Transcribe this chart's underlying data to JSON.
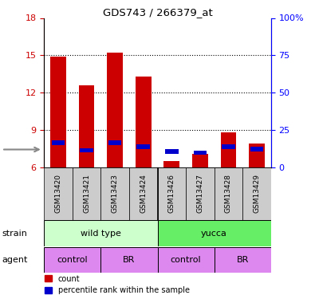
{
  "title": "GDS743 / 266379_at",
  "samples": [
    "GSM13420",
    "GSM13421",
    "GSM13423",
    "GSM13424",
    "GSM13426",
    "GSM13427",
    "GSM13428",
    "GSM13429"
  ],
  "red_values": [
    14.9,
    12.6,
    15.2,
    13.3,
    6.5,
    7.1,
    8.8,
    7.9
  ],
  "blue_values": [
    7.8,
    7.2,
    7.8,
    7.5,
    7.1,
    7.0,
    7.5,
    7.3
  ],
  "blue_heights": [
    0.35,
    0.35,
    0.35,
    0.35,
    0.35,
    0.35,
    0.35,
    0.35
  ],
  "ylim": [
    6,
    18
  ],
  "yticks_left": [
    6,
    9,
    12,
    15,
    18
  ],
  "yright_labels": [
    "0",
    "25",
    "50",
    "75",
    "100%"
  ],
  "red_color": "#cc0000",
  "blue_color": "#0000cc",
  "strain_labels": [
    "wild type",
    "yucca"
  ],
  "strain_colors": [
    "#ccffcc",
    "#66ee66"
  ],
  "agent_labels": [
    "control",
    "BR",
    "control",
    "BR"
  ],
  "agent_color": "#dd88ee",
  "label_bg": "#cccccc",
  "bar_width": 0.55
}
